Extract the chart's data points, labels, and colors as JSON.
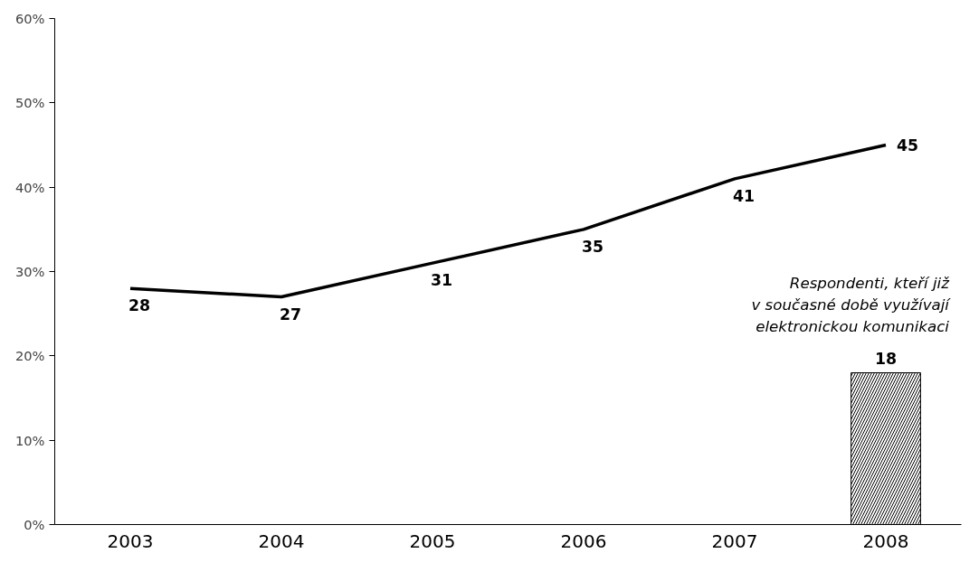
{
  "chart_data": {
    "type": "line",
    "categories": [
      "2003",
      "2004",
      "2005",
      "2006",
      "2007",
      "2008"
    ],
    "series": [
      {
        "color": "#000000",
        "values": [
          28,
          27,
          31,
          35,
          41,
          45
        ]
      },
      {
        "type": "bar",
        "color": "#000000",
        "values": [
          null,
          null,
          null,
          null,
          null,
          18
        ]
      }
    ],
    "ylim": [
      0,
      60
    ],
    "yticks": [
      {
        "value": 0,
        "label": "0%"
      },
      {
        "value": 10,
        "label": "10%"
      },
      {
        "value": 20,
        "label": "20%"
      },
      {
        "value": 30,
        "label": "30%"
      },
      {
        "value": 40,
        "label": "40%"
      },
      {
        "value": 50,
        "label": "50%"
      },
      {
        "value": 60,
        "label": "60%"
      }
    ],
    "annotations": [
      {
        "text": "Respondenti, kteří již\nv současné době využívají\nelektronickou komunikaci",
        "x": "2008",
        "y": 18
      }
    ],
    "data_labels": true,
    "grid": false,
    "marker": "none",
    "line_style": "solid"
  }
}
